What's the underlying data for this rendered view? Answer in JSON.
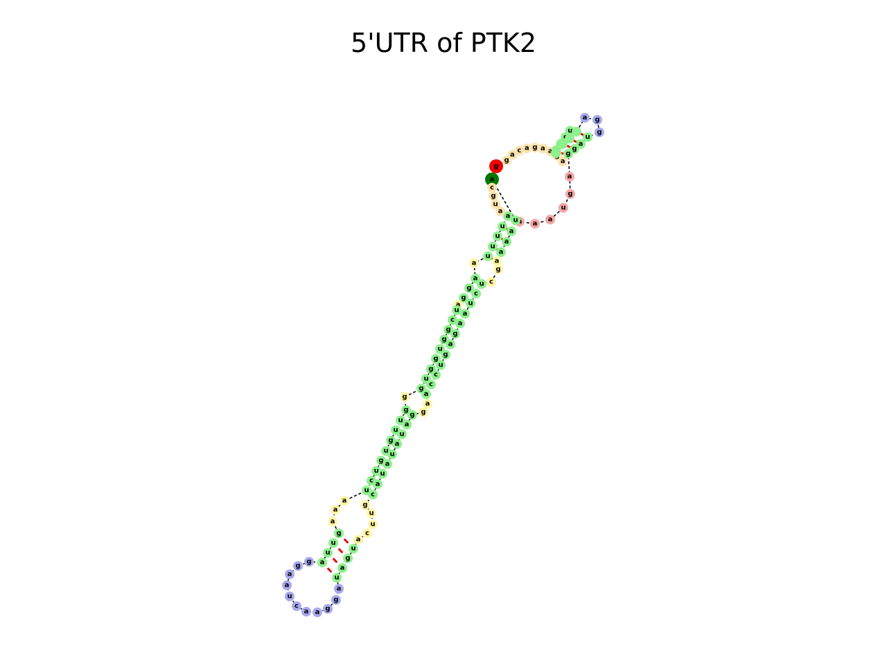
{
  "title": "5'UTR of PTK2",
  "colors": {
    "stem": "#8ef08e",
    "hairpin": "#a9a9ee",
    "interior_loop": "#fff6a6",
    "multiloop": "#f4a6a6",
    "exterior": "#fde3b0",
    "five_prime_end": "#ee0000",
    "three_prime_end": "#007700",
    "pair_line": "#ee0000",
    "backbone": "#000000"
  },
  "labels": {
    "ext_5": [
      "g",
      "a",
      "c",
      "a",
      "g",
      "a",
      "a",
      "g",
      "a"
    ],
    "h1_5": [
      "c",
      "u",
      "c",
      "u"
    ],
    "h1_loop": [
      "a",
      "g",
      "g"
    ],
    "h1_3": [
      "u",
      "a",
      "g",
      "g"
    ],
    "ml": [
      "a",
      "g",
      "u",
      "a",
      "a",
      "a"
    ],
    "s1_5": [
      "a",
      "u",
      "u",
      "u"
    ],
    "s1_3": [
      "a",
      "a",
      "a",
      "u"
    ],
    "il1_left": [
      "a"
    ],
    "il1_right": [
      "c",
      "g",
      "a"
    ],
    "s2_5": [
      "a",
      "g",
      "g"
    ],
    "s2_3": [
      "u",
      "c",
      "u"
    ],
    "il2_left": [
      "a"
    ],
    "s3_5": [
      "u",
      "c",
      "g",
      "g",
      "u",
      "g",
      "g",
      "u",
      "g"
    ],
    "s3_3": [
      "a",
      "c",
      "c",
      "u",
      "g",
      "a",
      "g",
      "a",
      "a"
    ],
    "il3_left": [
      "g"
    ],
    "il3_right": [
      "g",
      "a"
    ],
    "s4_5": [
      "g",
      "u",
      "u",
      "g",
      "u",
      "g",
      "u",
      "c",
      "u"
    ],
    "s4_3": [
      "c",
      "a",
      "u",
      "a",
      "u",
      "a",
      "u",
      "a",
      "g"
    ],
    "il4_left": [
      "a",
      "a",
      "a"
    ],
    "il4_right": [
      "a",
      "c",
      "u",
      "u",
      "g"
    ],
    "s5_5": [
      "g",
      "u",
      "u",
      "a"
    ],
    "s5_3": [
      "u",
      "a",
      "g",
      "u"
    ],
    "h2_loop": [
      "g",
      "g",
      "a",
      "a",
      "u",
      "c",
      "a",
      "a",
      "g",
      "g",
      "a"
    ],
    "ext_3": [
      "a",
      "c",
      "g",
      "u",
      "a"
    ]
  }
}
